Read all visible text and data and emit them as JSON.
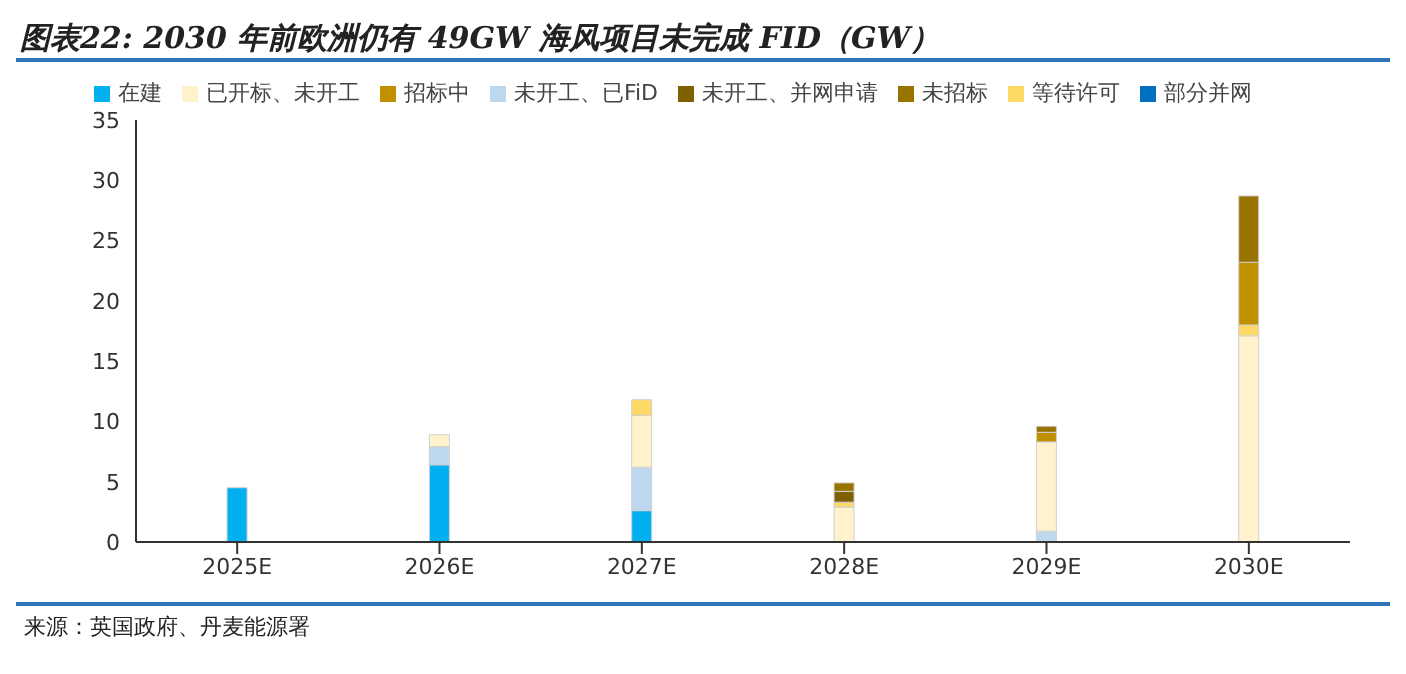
{
  "chart_data": {
    "type": "bar",
    "title": "图表22: 2030 年前欧洲仍有 49GW 海风项目未完成 FID（GW）",
    "stacked": true,
    "categories": [
      "2025E",
      "2026E",
      "2027E",
      "2028E",
      "2029E",
      "2030E"
    ],
    "series": [
      {
        "name": "部分并网",
        "color": "#0070c0",
        "values": [
          0,
          0,
          0,
          0,
          0,
          0
        ]
      },
      {
        "name": "在建",
        "color": "#00b0f0",
        "values": [
          4.5,
          6.4,
          2.6,
          0,
          0,
          0
        ]
      },
      {
        "name": "未开工、已FiD",
        "color": "#bdd7ee",
        "values": [
          0,
          1.5,
          3.6,
          0,
          0.9,
          0
        ]
      },
      {
        "name": "已开标、未开工",
        "color": "#fff2cc",
        "values": [
          0,
          1.0,
          4.3,
          2.9,
          7.4,
          17.1
        ]
      },
      {
        "name": "等待许可",
        "color": "#ffd966",
        "values": [
          0,
          0,
          1.3,
          0.4,
          0,
          0.9
        ]
      },
      {
        "name": "未开工、并网申请",
        "color": "#7f6000",
        "values": [
          0,
          0,
          0,
          0.9,
          0,
          0
        ]
      },
      {
        "name": "招标中",
        "color": "#bf9000",
        "values": [
          0,
          0,
          0,
          0,
          0.8,
          5.2
        ]
      },
      {
        "name": "未招标",
        "color": "#997300",
        "values": [
          0,
          0,
          0,
          0.7,
          0.5,
          5.5
        ]
      }
    ],
    "ylim": [
      0,
      35
    ],
    "yticks": [
      0,
      5,
      10,
      15,
      20,
      25,
      30,
      35
    ],
    "grid": false,
    "legend": "top",
    "annotations": [
      "来源：英国政府、丹麦能源署"
    ]
  }
}
